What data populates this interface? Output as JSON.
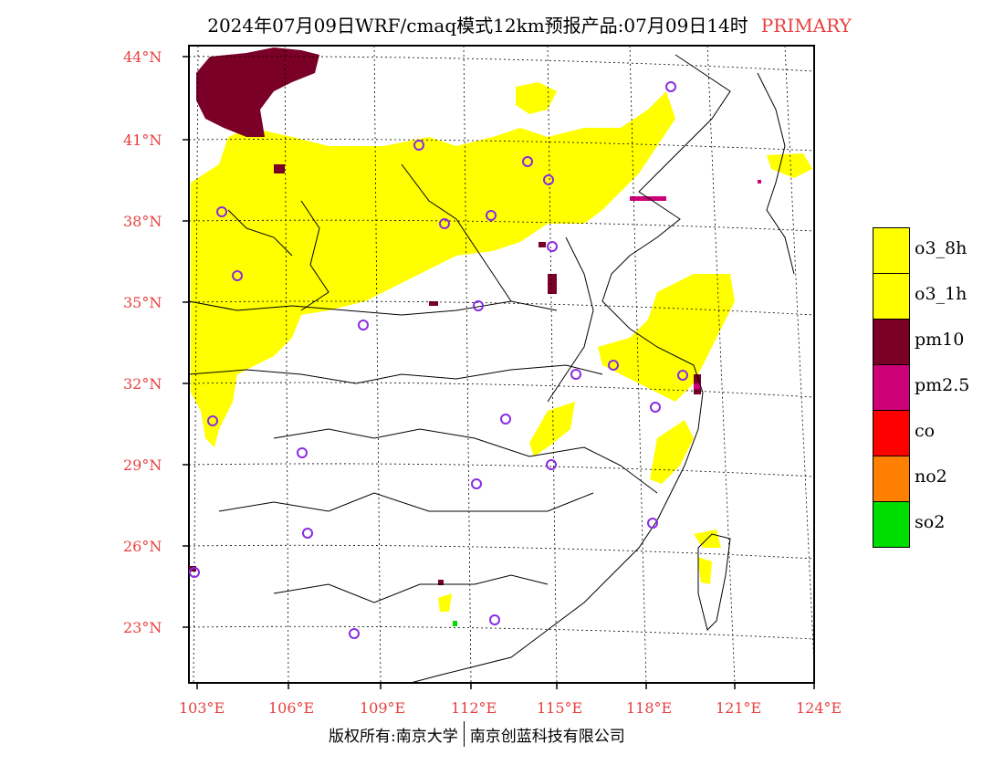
{
  "title": {
    "main": "2024年07月09日WRF/cmaq模式12km预报产品:07月09日14时",
    "tag": "PRIMARY"
  },
  "axes": {
    "lat_labels": [
      "44°N",
      "41°N",
      "38°N",
      "35°N",
      "32°N",
      "29°N",
      "26°N",
      "23°N"
    ],
    "lon_labels": [
      "103°E",
      "106°E",
      "109°E",
      "112°E",
      "115°E",
      "118°E",
      "121°E",
      "124°E"
    ]
  },
  "legend": {
    "items": [
      {
        "label": "o3_8h",
        "color": "#ffff00"
      },
      {
        "label": "o3_1h",
        "color": "#ffff00"
      },
      {
        "label": "pm10",
        "color": "#7a0028"
      },
      {
        "label": "pm2.5",
        "color": "#cc0077"
      },
      {
        "label": "co",
        "color": "#ff0000"
      },
      {
        "label": "no2",
        "color": "#ff7f00"
      },
      {
        "label": "so2",
        "color": "#00dd00"
      }
    ]
  },
  "footer": {
    "left": "版权所有:南京大学",
    "right": "南京创蓝科技有限公司"
  },
  "colors": {
    "accent": "#e84040",
    "station": "#8a2be2"
  }
}
